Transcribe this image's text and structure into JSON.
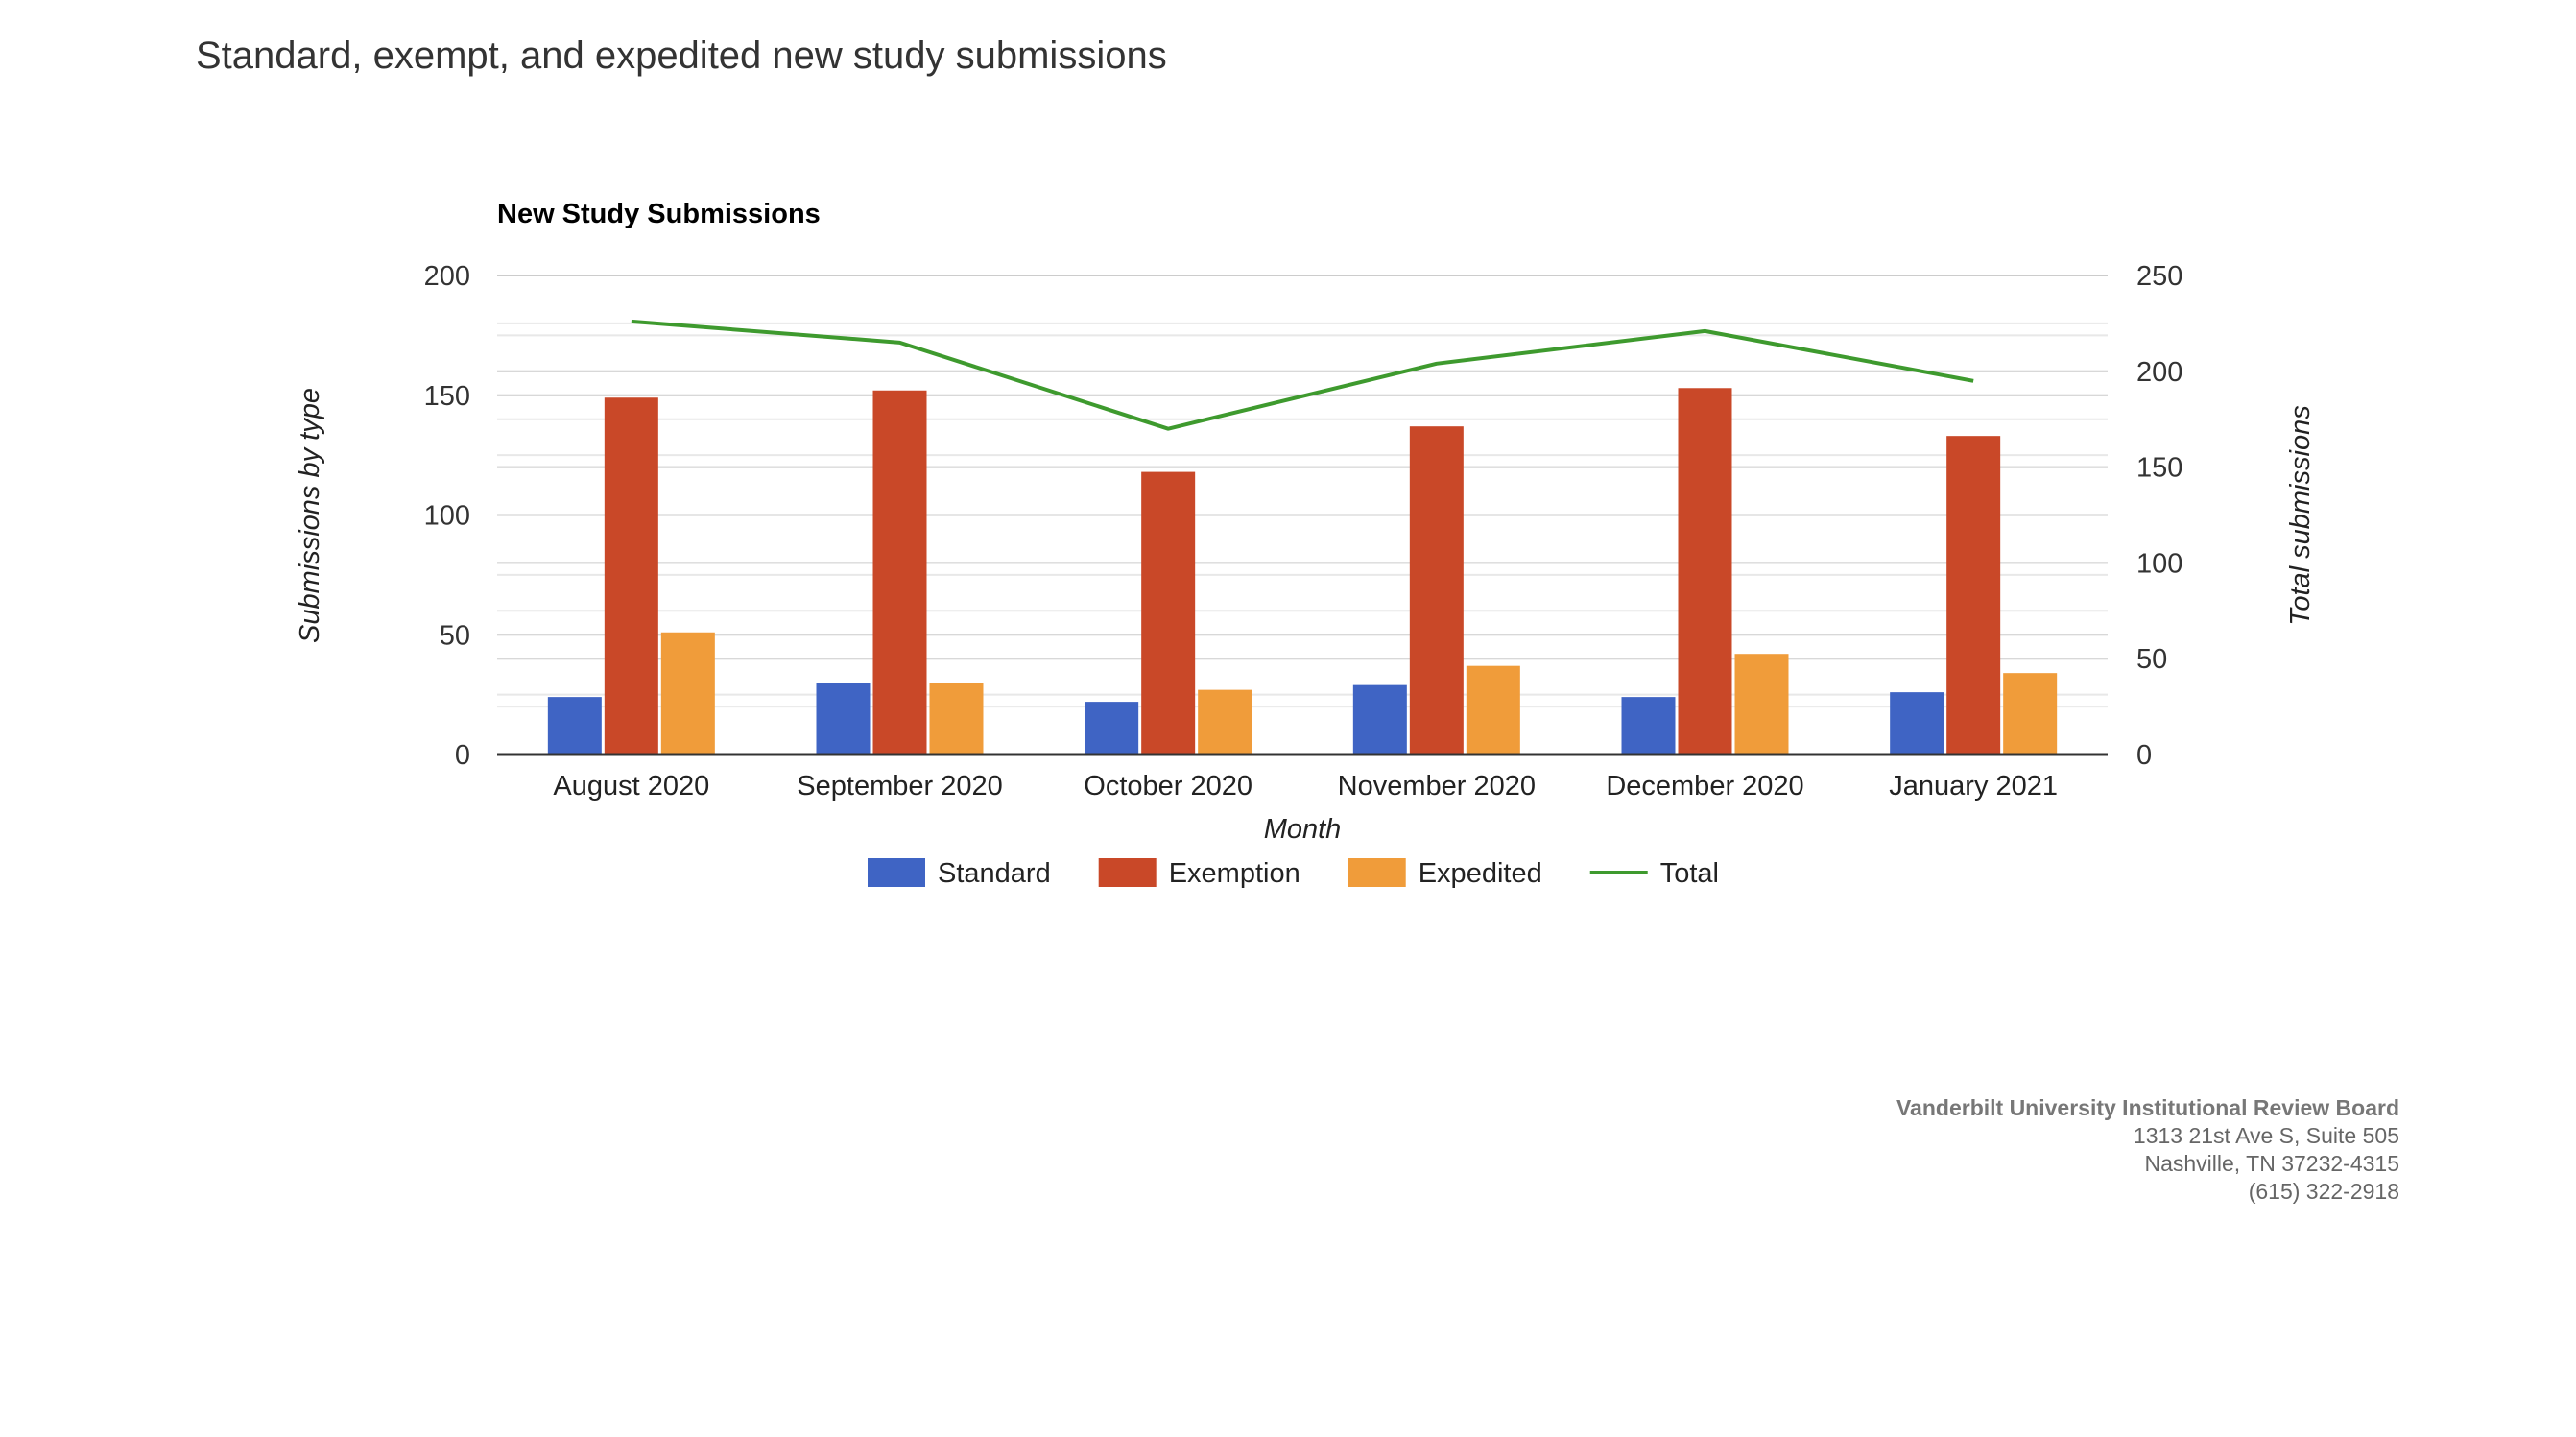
{
  "page_title": "Standard, exempt, and expedited new study submissions",
  "footer": {
    "org": "Vanderbilt University Institutional Review Board",
    "address1": "1313 21st Ave S, Suite 505",
    "address2": "Nashville, TN 37232-4315",
    "phone": "(615) 322-2918"
  },
  "chart_data": {
    "type": "bar",
    "title": "New Study Submissions",
    "xlabel": "Month",
    "ylabel": "Submissions by type",
    "y2label": "Total submissions",
    "ylim": [
      0,
      200
    ],
    "y2lim": [
      0,
      250
    ],
    "yticks": [
      0,
      50,
      100,
      150,
      200
    ],
    "y2ticks": [
      0,
      50,
      100,
      150,
      200,
      250
    ],
    "grid": true,
    "legend_position": "bottom",
    "categories": [
      "August 2020",
      "September 2020",
      "October 2020",
      "November 2020",
      "December 2020",
      "January 2021"
    ],
    "series": [
      {
        "name": "Standard",
        "type": "bar",
        "axis": "left",
        "color": "#3f64c4",
        "values": [
          24,
          30,
          22,
          29,
          24,
          26
        ]
      },
      {
        "name": "Exemption",
        "type": "bar",
        "axis": "left",
        "color": "#c94828",
        "values": [
          149,
          152,
          118,
          137,
          153,
          133
        ]
      },
      {
        "name": "Expedited",
        "type": "bar",
        "axis": "left",
        "color": "#f09c3a",
        "values": [
          51,
          30,
          27,
          37,
          42,
          34
        ]
      },
      {
        "name": "Total",
        "type": "line",
        "axis": "right",
        "color": "#3e9a2e",
        "values": [
          226,
          215,
          170,
          204,
          221,
          195
        ]
      }
    ]
  }
}
